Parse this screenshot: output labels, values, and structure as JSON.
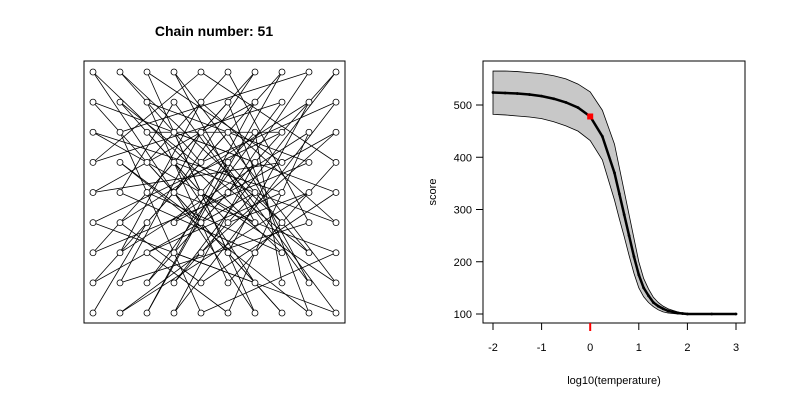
{
  "left_panel": {
    "title": "Chain number: 51"
  },
  "right_panel": {
    "xlabel": "log10(temperature)",
    "ylabel": "score"
  },
  "colors": {
    "band_fill": "#c8c8c8",
    "line": "#000000",
    "highlight": "#ff0000"
  },
  "chart_data": [
    {
      "type": "scatter",
      "title": "Chain number: 51",
      "description_of_marks": "10x9 lattice of nodes connected in a single chain (tour)",
      "grid_columns": 10,
      "grid_rows": 9,
      "nodes_x": [
        1,
        2,
        3,
        4,
        5,
        6,
        7,
        8,
        9,
        10
      ],
      "nodes_y": [
        1,
        2,
        3,
        4,
        5,
        6,
        7,
        8,
        9
      ],
      "tour": [
        [
          1,
          1
        ],
        [
          3,
          4
        ],
        [
          6,
          7
        ],
        [
          9,
          2
        ],
        [
          4,
          8
        ],
        [
          2,
          5
        ],
        [
          7,
          3
        ],
        [
          10,
          6
        ],
        [
          5,
          9
        ],
        [
          1,
          6
        ],
        [
          8,
          8
        ],
        [
          3,
          2
        ],
        [
          6,
          5
        ],
        [
          9,
          9
        ],
        [
          2,
          7
        ],
        [
          5,
          1
        ],
        [
          10,
          3
        ],
        [
          4,
          5
        ],
        [
          7,
          9
        ],
        [
          1,
          3
        ],
        [
          9,
          6
        ],
        [
          3,
          8
        ],
        [
          6,
          2
        ],
        [
          8,
          4
        ],
        [
          2,
          9
        ],
        [
          5,
          6
        ],
        [
          10,
          8
        ],
        [
          4,
          1
        ],
        [
          7,
          6
        ],
        [
          1,
          8
        ],
        [
          8,
          1
        ],
        [
          3,
          6
        ],
        [
          6,
          9
        ],
        [
          9,
          4
        ],
        [
          2,
          2
        ],
        [
          5,
          7
        ],
        [
          10,
          1
        ],
        [
          4,
          3
        ],
        [
          7,
          8
        ],
        [
          1,
          5
        ],
        [
          8,
          6
        ],
        [
          3,
          9
        ],
        [
          6,
          3
        ],
        [
          9,
          8
        ],
        [
          2,
          4
        ],
        [
          5,
          2
        ],
        [
          10,
          5
        ],
        [
          4,
          7
        ],
        [
          7,
          1
        ],
        [
          1,
          9
        ],
        [
          8,
          3
        ],
        [
          3,
          5
        ],
        [
          6,
          8
        ],
        [
          9,
          1
        ],
        [
          2,
          6
        ],
        [
          5,
          4
        ],
        [
          10,
          9
        ],
        [
          4,
          2
        ],
        [
          7,
          5
        ],
        [
          1,
          2
        ],
        [
          8,
          9
        ],
        [
          3,
          1
        ],
        [
          6,
          6
        ],
        [
          9,
          3
        ],
        [
          2,
          8
        ],
        [
          5,
          5
        ],
        [
          10,
          2
        ],
        [
          4,
          9
        ],
        [
          7,
          4
        ],
        [
          1,
          7
        ],
        [
          8,
          5
        ],
        [
          3,
          3
        ],
        [
          6,
          1
        ],
        [
          9,
          7
        ],
        [
          2,
          3
        ],
        [
          5,
          8
        ],
        [
          10,
          4
        ],
        [
          4,
          6
        ],
        [
          7,
          2
        ],
        [
          1,
          4
        ],
        [
          8,
          7
        ],
        [
          3,
          7
        ],
        [
          6,
          4
        ],
        [
          9,
          5
        ],
        [
          2,
          1
        ],
        [
          5,
          3
        ],
        [
          10,
          7
        ],
        [
          4,
          4
        ],
        [
          7,
          7
        ],
        [
          8,
          2
        ]
      ],
      "xlim": [
        1,
        10
      ],
      "ylim": [
        1,
        9
      ],
      "grid": false
    },
    {
      "type": "line",
      "xlabel": "log10(temperature)",
      "ylabel": "score",
      "xlim": [
        -2,
        3
      ],
      "ylim": [
        100,
        560
      ],
      "x_ticks": [
        -2,
        -1,
        0,
        1,
        2,
        3
      ],
      "y_ticks": [
        100,
        200,
        300,
        400,
        500
      ],
      "series": [
        {
          "x": [
            -2,
            -1.75,
            -1.5,
            -1.25,
            -1,
            -0.75,
            -0.5,
            -0.25,
            0,
            0.25,
            0.5,
            0.6,
            0.7,
            0.8,
            0.9,
            1,
            1.1,
            1.2,
            1.3,
            1.4,
            1.5,
            1.6,
            1.7,
            1.8,
            1.9,
            2,
            2.5,
            3
          ],
          "y": [
            524,
            523,
            522,
            520,
            517,
            512,
            505,
            495,
            478,
            440,
            370,
            330,
            290,
            250,
            210,
            175,
            150,
            135,
            122,
            115,
            110,
            106,
            104,
            102,
            101,
            100,
            100,
            100
          ],
          "upper": [
            565,
            565,
            564,
            562,
            560,
            556,
            550,
            540,
            525,
            490,
            425,
            380,
            335,
            290,
            245,
            200,
            168,
            148,
            132,
            122,
            115,
            110,
            107,
            104,
            102,
            101,
            100,
            100
          ],
          "lower": [
            482,
            481,
            479,
            477,
            474,
            468,
            460,
            450,
            432,
            395,
            318,
            282,
            248,
            212,
            178,
            150,
            133,
            122,
            114,
            108,
            104,
            102,
            101,
            100,
            100,
            100,
            100,
            100
          ]
        }
      ],
      "highlight_point": {
        "x": 0,
        "y": 478
      },
      "highlight_tick_x": 0,
      "grid": false
    }
  ]
}
